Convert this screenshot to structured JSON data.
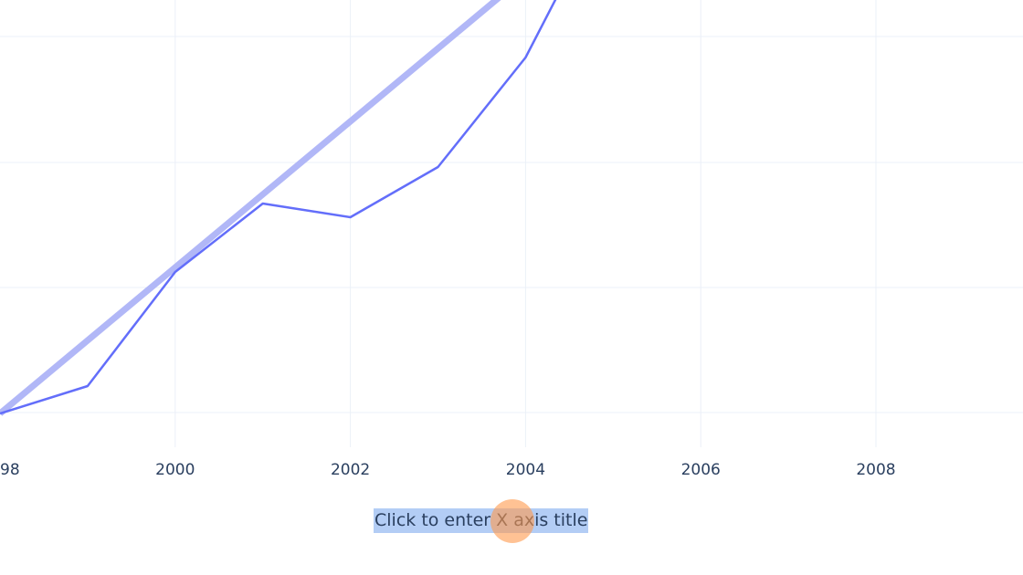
{
  "chart_data": {
    "type": "line",
    "title": "",
    "xlabel": "Click to enter X axis title",
    "ylabel": "",
    "x_ticks": [
      "98",
      "2000",
      "2002",
      "2004",
      "2006",
      "2008"
    ],
    "xlim": [
      1998,
      2009.7
    ],
    "grid": true,
    "series": [
      {
        "style": "thin",
        "color": "#636efa",
        "x": [
          1998,
          1999,
          2000,
          2001,
          2002,
          2003,
          2004,
          2004.7
        ],
        "y": [
          0.26,
          0.32,
          0.57,
          0.72,
          0.69,
          0.8,
          1.04,
          1.3
        ]
      },
      {
        "style": "trend",
        "color": "#b1b7f7",
        "x": [
          1998,
          2004.5
        ],
        "y": [
          0.26,
          1.3
        ]
      }
    ]
  },
  "colors": {
    "tick_text": "#2a3f5f",
    "grid": "#ebf0f8",
    "highlight": "#b3cdf5",
    "cursor": "#ff994d"
  }
}
